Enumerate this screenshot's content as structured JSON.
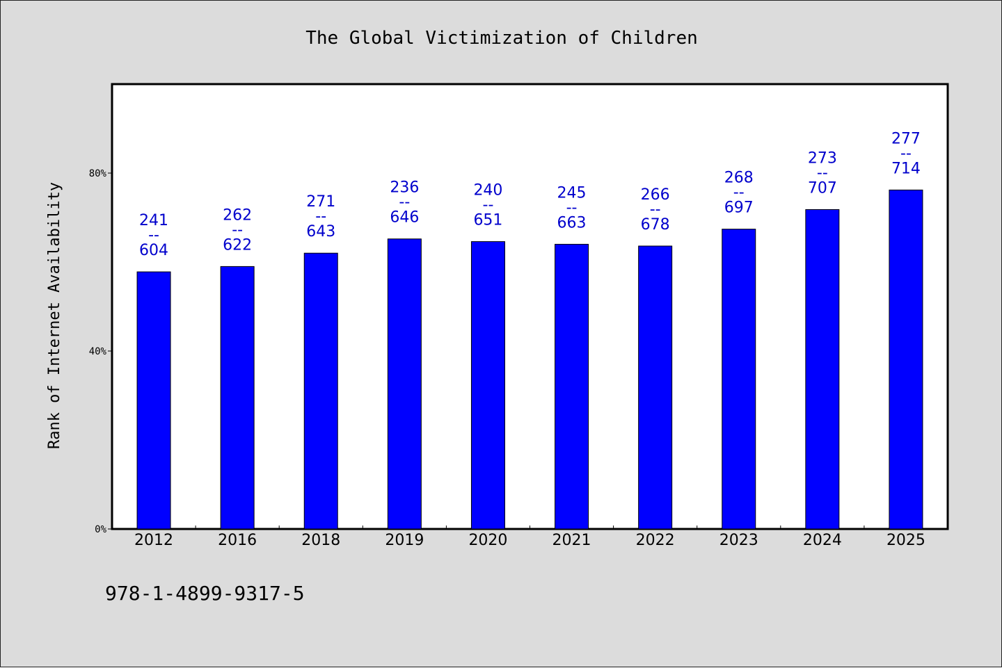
{
  "chart_data": {
    "type": "bar",
    "title": "The Global Victimization of Children",
    "ylabel": "Rank of Internet Availability",
    "xlabel": "",
    "categories": [
      "2012",
      "2016",
      "2018",
      "2019",
      "2020",
      "2021",
      "2022",
      "2023",
      "2024",
      "2025"
    ],
    "values": [
      57.8,
      59.0,
      62.0,
      65.2,
      64.6,
      64.0,
      63.6,
      67.4,
      71.8,
      76.2
    ],
    "label_top": [
      "241",
      "262",
      "271",
      "236",
      "240",
      "245",
      "266",
      "268",
      "273",
      "277"
    ],
    "label_separator": "--",
    "label_bottom": [
      "604",
      "622",
      "643",
      "646",
      "651",
      "663",
      "678",
      "697",
      "707",
      "714"
    ],
    "ylim": [
      0,
      100
    ],
    "yticks": [
      0,
      40,
      80
    ],
    "ytick_labels": [
      "0%",
      "40%",
      "80%"
    ],
    "bar_color": "#0000ff",
    "label_color": "#0000cc",
    "plot_background": "#ffffff",
    "page_background": "#dcdcdc",
    "grid": false,
    "legend": "none"
  },
  "footer": {
    "isbn": "978-1-4899-9317-5"
  }
}
